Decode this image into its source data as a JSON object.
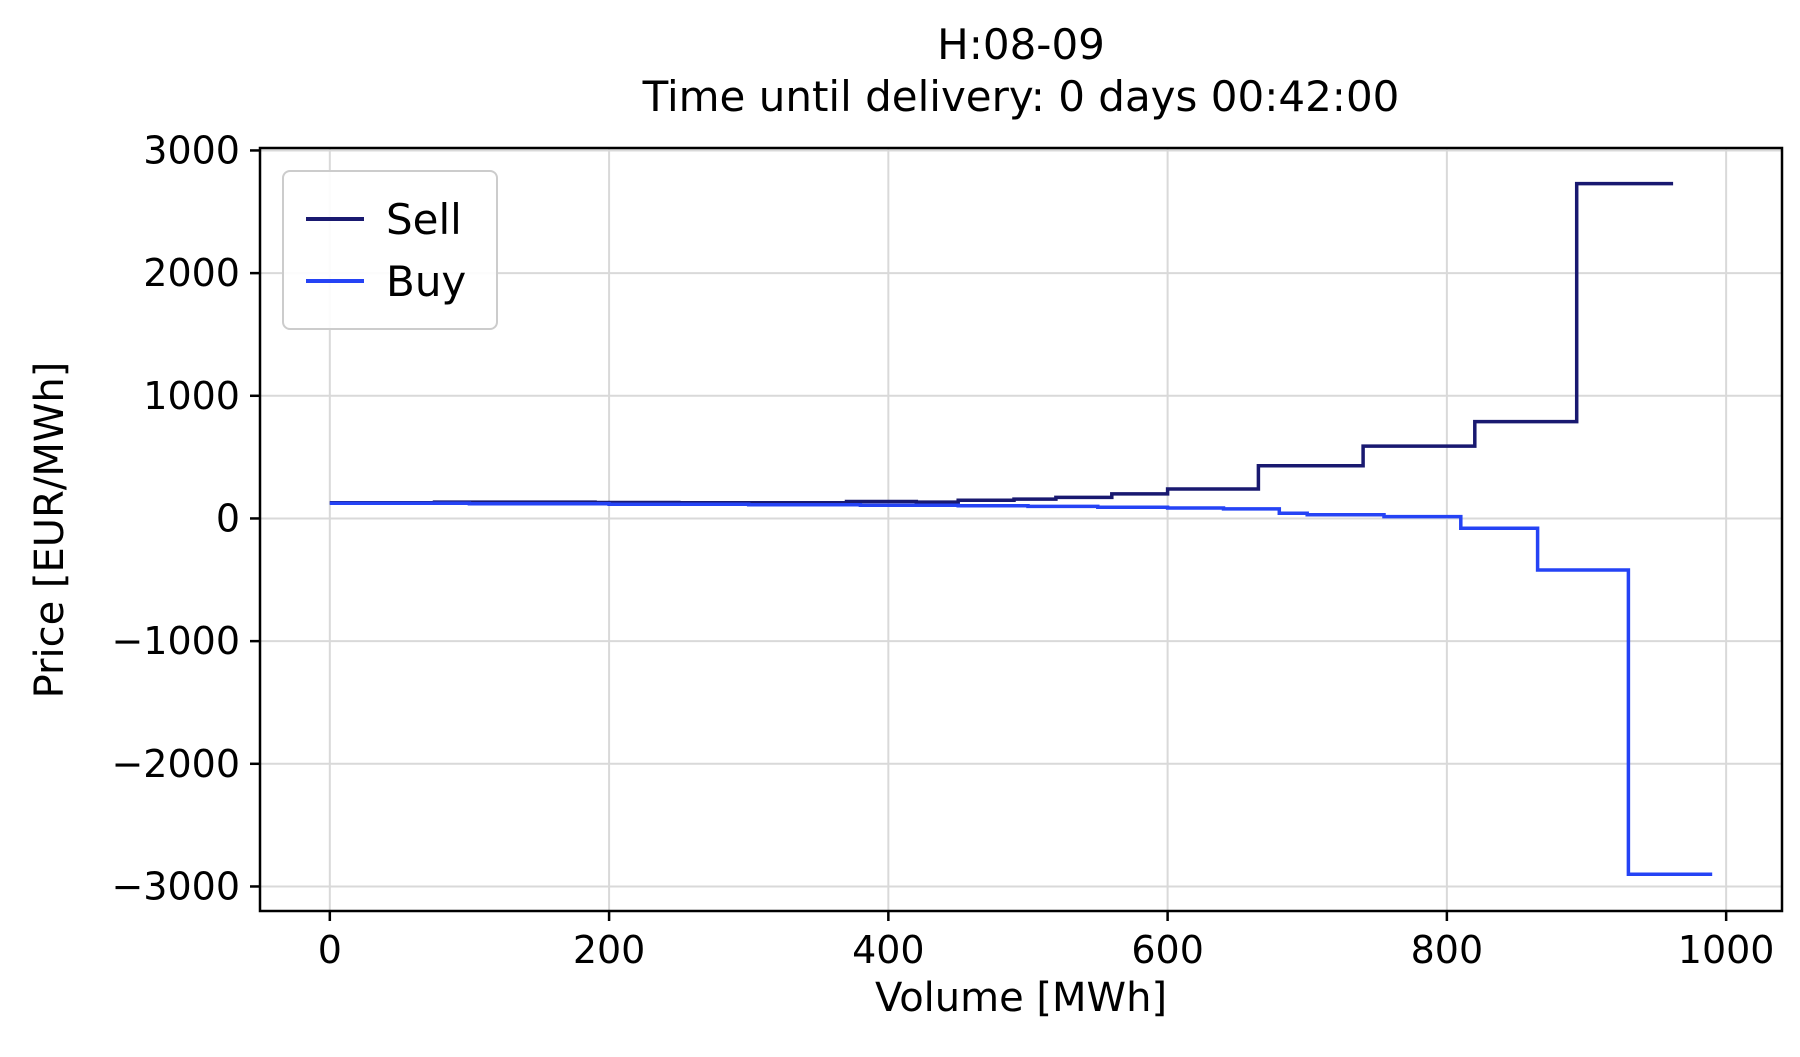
{
  "figure": {
    "title_line1": "H:08-09",
    "title_line2": "Time until delivery: 0 days 00:42:00",
    "xlabel": "Volume [MWh]",
    "ylabel": "Price [EUR/MWh]"
  },
  "colors": {
    "sell": "#191970",
    "buy": "#2543f5",
    "grid": "#d9d9d9",
    "spine": "#000000"
  },
  "chart_data": {
    "type": "line",
    "line_style": "step-post",
    "title": "H:08-09 — Time until delivery: 0 days 00:42:00",
    "xlabel": "Volume [MWh]",
    "ylabel": "Price [EUR/MWh]",
    "xlim": [
      -50,
      1040
    ],
    "ylim": [
      -3200,
      3020
    ],
    "xticks": [
      0,
      200,
      400,
      600,
      800,
      1000
    ],
    "yticks": [
      -3000,
      -2000,
      -1000,
      0,
      1000,
      2000,
      3000
    ],
    "grid": true,
    "legend_position": "upper-left",
    "series": [
      {
        "name": "Sell",
        "color": "#191970",
        "points": [
          [
            0,
            128
          ],
          [
            75,
            133
          ],
          [
            190,
            130
          ],
          [
            250,
            128
          ],
          [
            370,
            138
          ],
          [
            420,
            133
          ],
          [
            450,
            148
          ],
          [
            490,
            158
          ],
          [
            520,
            172
          ],
          [
            560,
            200
          ],
          [
            600,
            240
          ],
          [
            665,
            430
          ],
          [
            740,
            590
          ],
          [
            820,
            790
          ],
          [
            893,
            2730
          ],
          [
            962,
            2730
          ]
        ]
      },
      {
        "name": "Buy",
        "color": "#2543f5",
        "points": [
          [
            0,
            124
          ],
          [
            100,
            120
          ],
          [
            200,
            116
          ],
          [
            300,
            112
          ],
          [
            380,
            108
          ],
          [
            450,
            103
          ],
          [
            500,
            98
          ],
          [
            550,
            92
          ],
          [
            600,
            85
          ],
          [
            640,
            78
          ],
          [
            680,
            42
          ],
          [
            700,
            30
          ],
          [
            755,
            15
          ],
          [
            810,
            -80
          ],
          [
            865,
            -420
          ],
          [
            930,
            -2900
          ],
          [
            990,
            -2900
          ]
        ]
      }
    ]
  }
}
